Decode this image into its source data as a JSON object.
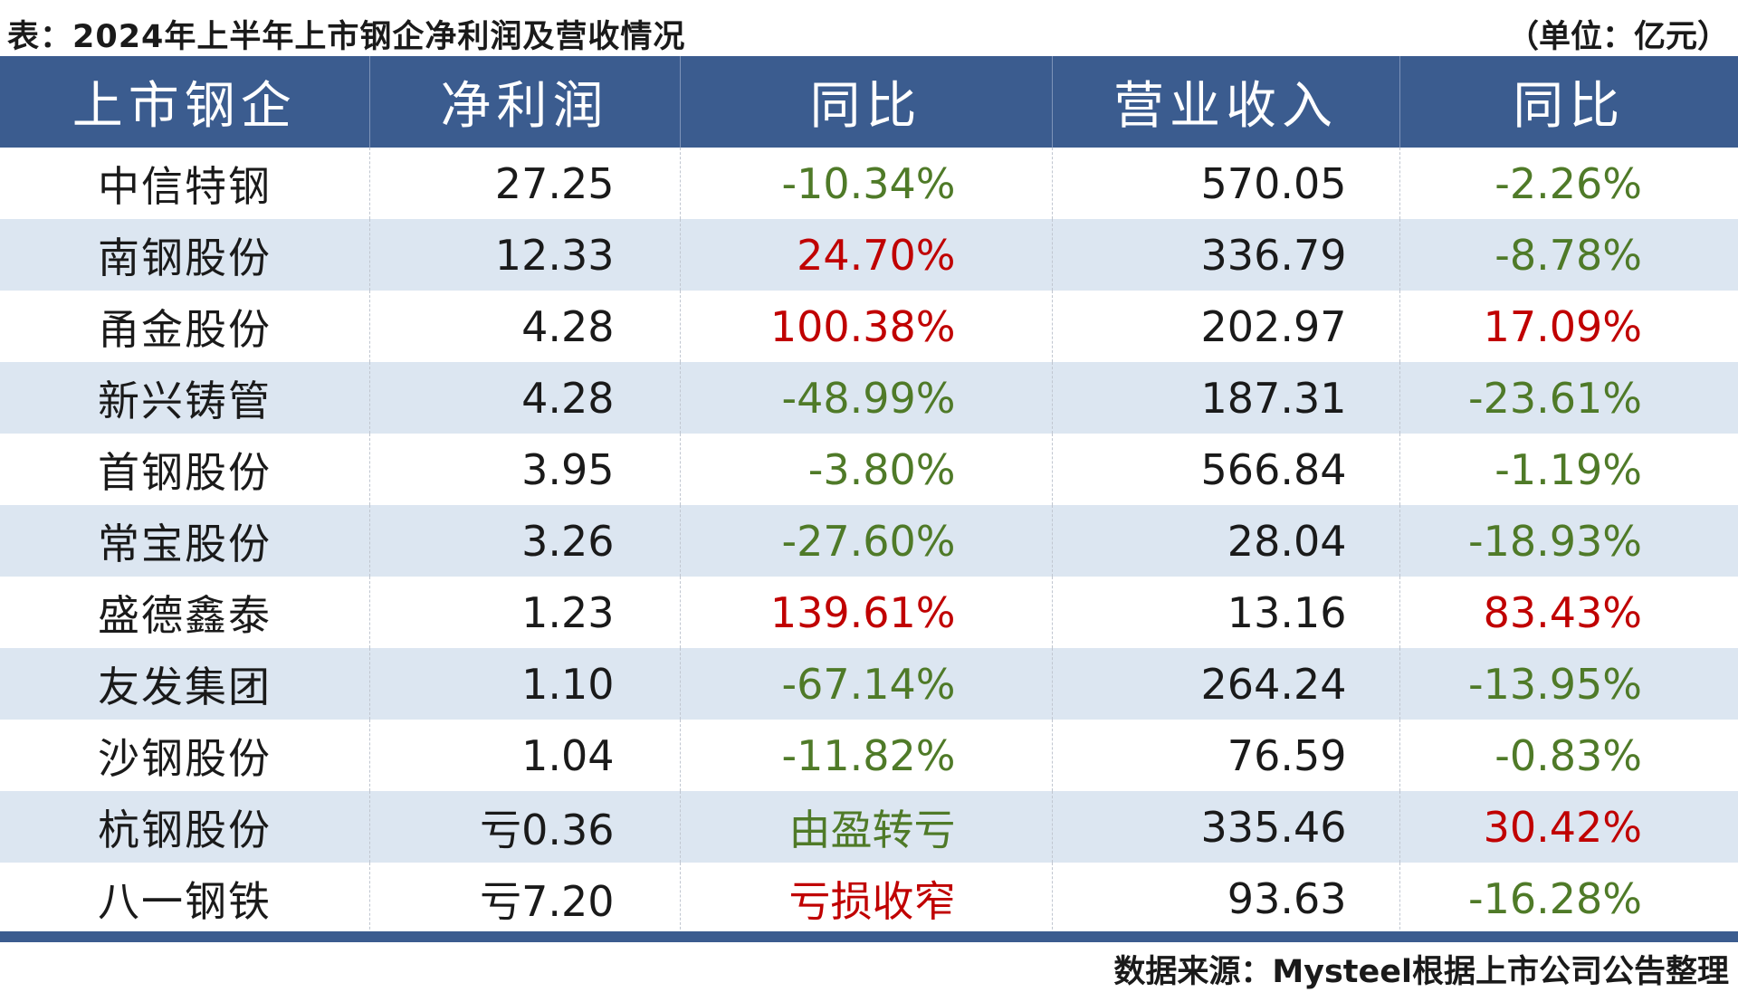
{
  "header": {
    "title": "表：2024年上半年上市钢企净利润及营收情况",
    "unit": "（单位：亿元）"
  },
  "table": {
    "columns": [
      "上市钢企",
      "净利润",
      "同比",
      "营业收入",
      "同比"
    ],
    "rows": [
      {
        "company": "中信特钢",
        "profit": "27.25",
        "profit_yoy": "-10.34%",
        "profit_yoy_trend": "neg",
        "revenue": "570.05",
        "revenue_yoy": "-2.26%",
        "revenue_yoy_trend": "neg"
      },
      {
        "company": "南钢股份",
        "profit": "12.33",
        "profit_yoy": "24.70%",
        "profit_yoy_trend": "pos",
        "revenue": "336.79",
        "revenue_yoy": "-8.78%",
        "revenue_yoy_trend": "neg"
      },
      {
        "company": "甬金股份",
        "profit": "4.28",
        "profit_yoy": "100.38%",
        "profit_yoy_trend": "pos",
        "revenue": "202.97",
        "revenue_yoy": "17.09%",
        "revenue_yoy_trend": "pos"
      },
      {
        "company": "新兴铸管",
        "profit": "4.28",
        "profit_yoy": "-48.99%",
        "profit_yoy_trend": "neg",
        "revenue": "187.31",
        "revenue_yoy": "-23.61%",
        "revenue_yoy_trend": "neg"
      },
      {
        "company": "首钢股份",
        "profit": "3.95",
        "profit_yoy": "-3.80%",
        "profit_yoy_trend": "neg",
        "revenue": "566.84",
        "revenue_yoy": "-1.19%",
        "revenue_yoy_trend": "neg"
      },
      {
        "company": "常宝股份",
        "profit": "3.26",
        "profit_yoy": "-27.60%",
        "profit_yoy_trend": "neg",
        "revenue": "28.04",
        "revenue_yoy": "-18.93%",
        "revenue_yoy_trend": "neg"
      },
      {
        "company": "盛德鑫泰",
        "profit": "1.23",
        "profit_yoy": "139.61%",
        "profit_yoy_trend": "pos",
        "revenue": "13.16",
        "revenue_yoy": "83.43%",
        "revenue_yoy_trend": "pos"
      },
      {
        "company": "友发集团",
        "profit": "1.10",
        "profit_yoy": "-67.14%",
        "profit_yoy_trend": "neg",
        "revenue": "264.24",
        "revenue_yoy": "-13.95%",
        "revenue_yoy_trend": "neg"
      },
      {
        "company": "沙钢股份",
        "profit": "1.04",
        "profit_yoy": "-11.82%",
        "profit_yoy_trend": "neg",
        "revenue": "76.59",
        "revenue_yoy": "-0.83%",
        "revenue_yoy_trend": "neg"
      },
      {
        "company": "杭钢股份",
        "profit": "亏0.36",
        "profit_yoy": "由盈转亏",
        "profit_yoy_trend": "neg",
        "revenue": "335.46",
        "revenue_yoy": "30.42%",
        "revenue_yoy_trend": "pos"
      },
      {
        "company": "八一钢铁",
        "profit": "亏7.20",
        "profit_yoy": "亏损收窄",
        "profit_yoy_trend": "pos",
        "revenue": "93.63",
        "revenue_yoy": "-16.28%",
        "revenue_yoy_trend": "neg"
      }
    ]
  },
  "colors": {
    "header_bg": "#3b5c8f",
    "stripe_bg": "#dce6f1",
    "positive": "#c00000",
    "negative": "#4f7a28"
  },
  "footer": {
    "source": "数据来源：Mysteel根据上市公司公告整理"
  }
}
